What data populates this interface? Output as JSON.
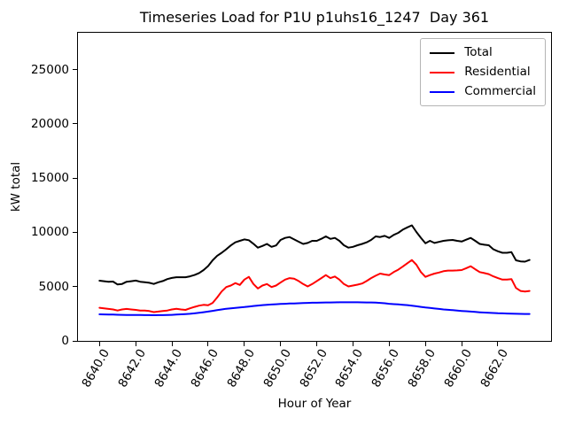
{
  "figure": {
    "title": "Timeseries Load for P1U p1uhs16_1247  Day 361"
  },
  "chart_data": {
    "type": "line",
    "title": "Timeseries Load for P1U p1uhs16_1247  Day 361",
    "xlabel": "Hour of Year",
    "ylabel": "kW total",
    "xlim": [
      8638.8125,
      8664.9375
    ],
    "ylim": [
      0,
      28400
    ],
    "grid": false,
    "legend_position": "upper right",
    "x_ticks": [
      8640,
      8642,
      8644,
      8646,
      8648,
      8650,
      8652,
      8654,
      8656,
      8658,
      8660,
      8662
    ],
    "x_tick_labels": [
      "8640.0",
      "8642.0",
      "8644.0",
      "8646.0",
      "8648.0",
      "8650.0",
      "8652.0",
      "8654.0",
      "8656.0",
      "8658.0",
      "8660.0",
      "8662.0"
    ],
    "y_ticks": [
      0,
      5000,
      10000,
      15000,
      20000,
      25000
    ],
    "y_tick_labels": [
      "0",
      "5000",
      "10000",
      "15000",
      "20000",
      "25000"
    ],
    "x": [
      8640.0,
      8640.25,
      8640.5,
      8640.75,
      8641.0,
      8641.25,
      8641.5,
      8641.75,
      8642.0,
      8642.25,
      8642.5,
      8642.75,
      8643.0,
      8643.25,
      8643.5,
      8643.75,
      8644.0,
      8644.25,
      8644.5,
      8644.75,
      8645.0,
      8645.25,
      8645.5,
      8645.75,
      8646.0,
      8646.25,
      8646.5,
      8646.75,
      8647.0,
      8647.25,
      8647.5,
      8647.75,
      8648.0,
      8648.25,
      8648.5,
      8648.75,
      8649.0,
      8649.25,
      8649.5,
      8649.75,
      8650.0,
      8650.25,
      8650.5,
      8650.75,
      8651.0,
      8651.25,
      8651.5,
      8651.75,
      8652.0,
      8652.25,
      8652.5,
      8652.75,
      8653.0,
      8653.25,
      8653.5,
      8653.75,
      8654.0,
      8654.25,
      8654.5,
      8654.75,
      8655.0,
      8655.25,
      8655.5,
      8655.75,
      8656.0,
      8656.25,
      8656.5,
      8656.75,
      8657.0,
      8657.25,
      8657.5,
      8657.75,
      8658.0,
      8658.25,
      8658.5,
      8658.75,
      8659.0,
      8659.25,
      8659.5,
      8659.75,
      8660.0,
      8660.25,
      8660.5,
      8660.75,
      8661.0,
      8661.25,
      8661.5,
      8661.75,
      8662.0,
      8662.25,
      8662.5,
      8662.75,
      8663.0,
      8663.25,
      8663.5,
      8663.75
    ],
    "series": [
      {
        "name": "Total",
        "color": "#000000",
        "values": [
          5550,
          5500,
          5450,
          5470,
          5200,
          5250,
          5450,
          5500,
          5560,
          5450,
          5400,
          5350,
          5250,
          5400,
          5520,
          5700,
          5800,
          5870,
          5870,
          5870,
          5950,
          6070,
          6250,
          6530,
          6900,
          7430,
          7840,
          8120,
          8450,
          8800,
          9080,
          9220,
          9350,
          9280,
          8950,
          8590,
          8750,
          8940,
          8670,
          8800,
          9300,
          9490,
          9570,
          9350,
          9140,
          8940,
          9030,
          9220,
          9220,
          9410,
          9630,
          9400,
          9490,
          9220,
          8810,
          8590,
          8670,
          8810,
          8940,
          9080,
          9300,
          9630,
          9570,
          9680,
          9490,
          9770,
          9960,
          10250,
          10460,
          10650,
          10040,
          9500,
          8990,
          9220,
          9030,
          9120,
          9220,
          9270,
          9300,
          9220,
          9160,
          9330,
          9490,
          9220,
          8940,
          8860,
          8810,
          8450,
          8260,
          8120,
          8120,
          8180,
          7430,
          7330,
          7300,
          7460
        ]
      },
      {
        "name": "Residential",
        "color": "#ff0000",
        "values": [
          3050,
          3000,
          2950,
          2900,
          2800,
          2900,
          2950,
          2900,
          2860,
          2800,
          2800,
          2750,
          2650,
          2700,
          2750,
          2800,
          2900,
          2960,
          2900,
          2860,
          3000,
          3130,
          3250,
          3320,
          3280,
          3500,
          4000,
          4550,
          4960,
          5100,
          5330,
          5160,
          5650,
          5900,
          5250,
          4830,
          5100,
          5240,
          4960,
          5100,
          5375,
          5650,
          5790,
          5740,
          5520,
          5240,
          5020,
          5240,
          5520,
          5790,
          6060,
          5790,
          5930,
          5650,
          5240,
          5020,
          5100,
          5180,
          5290,
          5520,
          5790,
          6010,
          6200,
          6120,
          6060,
          6340,
          6560,
          6850,
          7160,
          7450,
          7020,
          6340,
          5900,
          6060,
          6200,
          6300,
          6420,
          6480,
          6480,
          6500,
          6530,
          6700,
          6880,
          6600,
          6340,
          6250,
          6150,
          5950,
          5790,
          5650,
          5650,
          5700,
          4880,
          4600,
          4550,
          4600
        ]
      },
      {
        "name": "Commercial",
        "color": "#0000ff",
        "values": [
          2450,
          2440,
          2430,
          2420,
          2410,
          2400,
          2395,
          2390,
          2385,
          2380,
          2375,
          2372,
          2370,
          2372,
          2375,
          2385,
          2400,
          2420,
          2445,
          2470,
          2500,
          2540,
          2590,
          2645,
          2700,
          2765,
          2830,
          2895,
          2960,
          3005,
          3045,
          3085,
          3120,
          3170,
          3215,
          3260,
          3300,
          3330,
          3355,
          3380,
          3400,
          3420,
          3440,
          3455,
          3470,
          3490,
          3505,
          3515,
          3520,
          3530,
          3540,
          3545,
          3550,
          3555,
          3558,
          3560,
          3560,
          3558,
          3552,
          3545,
          3540,
          3525,
          3500,
          3465,
          3420,
          3390,
          3360,
          3330,
          3300,
          3245,
          3190,
          3135,
          3080,
          3035,
          2990,
          2945,
          2900,
          2865,
          2830,
          2795,
          2760,
          2730,
          2700,
          2670,
          2640,
          2615,
          2595,
          2570,
          2550,
          2535,
          2520,
          2510,
          2500,
          2492,
          2485,
          2480
        ]
      }
    ]
  }
}
